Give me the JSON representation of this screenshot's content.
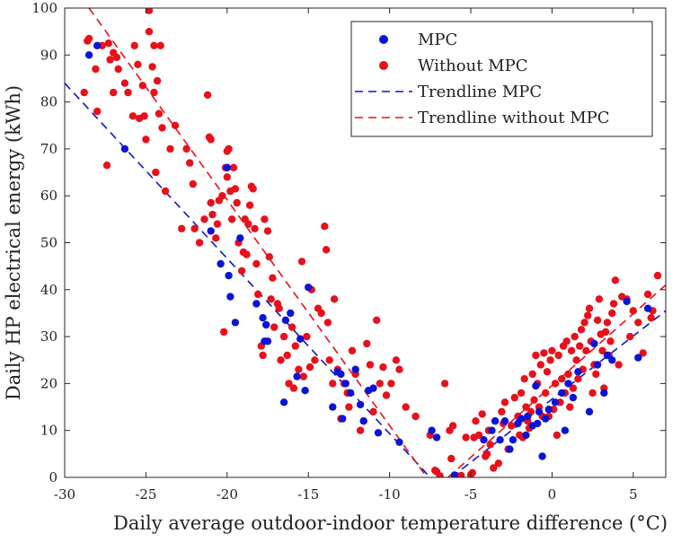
{
  "chart_data": {
    "type": "scatter",
    "title": "",
    "xlabel": "Daily average outdoor-indoor temperature difference (°C)",
    "ylabel": "Daily HP electrical energy (kWh)",
    "xlim": [
      -30,
      7
    ],
    "ylim": [
      0,
      100
    ],
    "x_ticks": [
      -30,
      -25,
      -20,
      -15,
      -10,
      -5,
      0,
      5
    ],
    "y_ticks": [
      0,
      10,
      20,
      30,
      40,
      50,
      60,
      70,
      80,
      90,
      100
    ],
    "grid": false,
    "legend_position": "top-right",
    "legend": [
      "MPC",
      "Without MPC",
      "Trendline MPC",
      "Trendline without MPC"
    ],
    "colors": {
      "mpc": "#0b14d6",
      "without_mpc": "#e8101a"
    },
    "series": [
      {
        "name": "Without MPC",
        "kind": "points",
        "color": "#e8101a",
        "points": [
          [
            -28.8,
            82
          ],
          [
            -28.6,
            93
          ],
          [
            -28.5,
            93.5
          ],
          [
            -28.1,
            87
          ],
          [
            -28,
            78
          ],
          [
            -27.7,
            92
          ],
          [
            -27.4,
            66.5
          ],
          [
            -27.3,
            92.5
          ],
          [
            -27.2,
            89
          ],
          [
            -27,
            90.5
          ],
          [
            -27,
            82
          ],
          [
            -26.8,
            89.5
          ],
          [
            -26.7,
            87
          ],
          [
            -26.3,
            84
          ],
          [
            -26.1,
            82
          ],
          [
            -25.8,
            77
          ],
          [
            -25.7,
            92
          ],
          [
            -25.5,
            88
          ],
          [
            -25.4,
            76.5
          ],
          [
            -25.2,
            83.5
          ],
          [
            -25.1,
            77
          ],
          [
            -25,
            72
          ],
          [
            -24.8,
            95
          ],
          [
            -24.8,
            99.5
          ],
          [
            -24.6,
            87.5
          ],
          [
            -24.5,
            92
          ],
          [
            -24.5,
            82
          ],
          [
            -24.4,
            65
          ],
          [
            -24.3,
            84.5
          ],
          [
            -24.2,
            77.5
          ],
          [
            -24.1,
            92
          ],
          [
            -24,
            74.5
          ],
          [
            -23.8,
            61
          ],
          [
            -23.5,
            70
          ],
          [
            -23.2,
            75
          ],
          [
            -22.8,
            53
          ],
          [
            -22.5,
            70
          ],
          [
            -22.3,
            67
          ],
          [
            -22.1,
            62.5
          ],
          [
            -22,
            53
          ],
          [
            -21.7,
            50
          ],
          [
            -21.4,
            55
          ],
          [
            -21.2,
            81.5
          ],
          [
            -21.1,
            72.5
          ],
          [
            -21,
            72
          ],
          [
            -21,
            58.5
          ],
          [
            -20.9,
            56
          ],
          [
            -20.7,
            51
          ],
          [
            -20.6,
            54
          ],
          [
            -20.5,
            59
          ],
          [
            -20.3,
            60
          ],
          [
            -20.2,
            31
          ],
          [
            -20.1,
            66
          ],
          [
            -20,
            69.5
          ],
          [
            -20,
            64
          ],
          [
            -19.9,
            70
          ],
          [
            -19.8,
            61
          ],
          [
            -19.7,
            55
          ],
          [
            -19.6,
            66
          ],
          [
            -19.5,
            61.5
          ],
          [
            -19.4,
            58.5
          ],
          [
            -19.3,
            50
          ],
          [
            -19.1,
            44
          ],
          [
            -19,
            48
          ],
          [
            -18.9,
            55
          ],
          [
            -18.8,
            47.5
          ],
          [
            -18.7,
            54
          ],
          [
            -18.6,
            58
          ],
          [
            -18.5,
            62
          ],
          [
            -18.4,
            61.5
          ],
          [
            -18.3,
            53
          ],
          [
            -18.2,
            45.5
          ],
          [
            -18.1,
            39
          ],
          [
            -17.9,
            28
          ],
          [
            -17.8,
            26
          ],
          [
            -17.7,
            55
          ],
          [
            -17.5,
            52.5
          ],
          [
            -17.4,
            47
          ],
          [
            -17.3,
            38
          ],
          [
            -17.2,
            42.5
          ],
          [
            -17.1,
            32
          ],
          [
            -16.9,
            37
          ],
          [
            -16.8,
            36
          ],
          [
            -16.7,
            25
          ],
          [
            -16.5,
            30
          ],
          [
            -16.3,
            26
          ],
          [
            -16.2,
            20
          ],
          [
            -16,
            32
          ],
          [
            -15.9,
            19
          ],
          [
            -15.8,
            28
          ],
          [
            -15.6,
            23
          ],
          [
            -15.4,
            46
          ],
          [
            -15.3,
            21.5
          ],
          [
            -15.1,
            30
          ],
          [
            -14.9,
            23.5
          ],
          [
            -14.8,
            40
          ],
          [
            -14.6,
            25
          ],
          [
            -14.4,
            36
          ],
          [
            -14.2,
            35
          ],
          [
            -14,
            53.5
          ],
          [
            -13.9,
            48.5
          ],
          [
            -13.8,
            33
          ],
          [
            -13.7,
            25
          ],
          [
            -13.5,
            20
          ],
          [
            -13.4,
            38
          ],
          [
            -13.2,
            23
          ],
          [
            -13,
            12.5
          ],
          [
            -12.8,
            20
          ],
          [
            -12.6,
            18
          ],
          [
            -12.5,
            15
          ],
          [
            -12.3,
            27
          ],
          [
            -12.1,
            22
          ],
          [
            -11.8,
            10
          ],
          [
            -11.6,
            12
          ],
          [
            -11.4,
            28.5
          ],
          [
            -11.2,
            24
          ],
          [
            -11,
            14
          ],
          [
            -10.8,
            33.5
          ],
          [
            -10.6,
            20
          ],
          [
            -10.4,
            23.5
          ],
          [
            -10.2,
            17.5
          ],
          [
            -9.9,
            20
          ],
          [
            -9.6,
            25
          ],
          [
            -9.4,
            23
          ],
          [
            -9,
            15
          ],
          [
            -8.4,
            13
          ],
          [
            -7.5,
            9
          ],
          [
            -7.2,
            1.5
          ],
          [
            -7.1,
            1.2
          ],
          [
            -6.9,
            0.3
          ],
          [
            -6.6,
            20
          ],
          [
            -6.3,
            10
          ],
          [
            -6.2,
            4
          ],
          [
            -6.1,
            11
          ],
          [
            -5.9,
            0.3
          ],
          [
            -5.6,
            0.4
          ],
          [
            -5.3,
            8.5
          ],
          [
            -5,
            0.6
          ],
          [
            -4.9,
            1
          ],
          [
            -4.8,
            8.5
          ],
          [
            -4.7,
            12
          ],
          [
            -4.5,
            9
          ],
          [
            -4.3,
            13.5
          ],
          [
            -4.1,
            4.5
          ],
          [
            -4,
            5
          ],
          [
            -3.9,
            10
          ],
          [
            -3.8,
            7
          ],
          [
            -3.6,
            2
          ],
          [
            -3.5,
            12
          ],
          [
            -3.3,
            3
          ],
          [
            -3.1,
            14
          ],
          [
            -3,
            11.5
          ],
          [
            -2.9,
            16
          ],
          [
            -2.7,
            6
          ],
          [
            -2.5,
            11
          ],
          [
            -2.3,
            17
          ],
          [
            -2.1,
            13
          ],
          [
            -2,
            9
          ],
          [
            -1.9,
            18
          ],
          [
            -1.8,
            8.5
          ],
          [
            -1.7,
            21
          ],
          [
            -1.6,
            15
          ],
          [
            -1.5,
            12
          ],
          [
            -1.4,
            10.5
          ],
          [
            -1.3,
            14
          ],
          [
            -1.2,
            22
          ],
          [
            -1.1,
            16.5
          ],
          [
            -1,
            26
          ],
          [
            -0.9,
            20
          ],
          [
            -0.8,
            15
          ],
          [
            -0.7,
            24
          ],
          [
            -0.6,
            13
          ],
          [
            -0.5,
            26.5
          ],
          [
            -0.4,
            18
          ],
          [
            -0.3,
            22.5
          ],
          [
            -0.2,
            13
          ],
          [
            -0.1,
            25
          ],
          [
            0,
            27
          ],
          [
            0.1,
            14.5
          ],
          [
            0.2,
            20
          ],
          [
            0.3,
            9
          ],
          [
            0.4,
            26
          ],
          [
            0.5,
            16
          ],
          [
            0.6,
            21
          ],
          [
            0.7,
            28
          ],
          [
            0.8,
            18
          ],
          [
            0.9,
            29
          ],
          [
            1,
            22
          ],
          [
            1.1,
            15
          ],
          [
            1.2,
            27
          ],
          [
            1.3,
            19
          ],
          [
            1.4,
            30
          ],
          [
            1.5,
            25
          ],
          [
            1.6,
            21
          ],
          [
            1.7,
            28
          ],
          [
            1.8,
            31.5
          ],
          [
            1.9,
            23
          ],
          [
            2,
            33
          ],
          [
            2.1,
            27
          ],
          [
            2.2,
            34.5
          ],
          [
            2.3,
            36
          ],
          [
            2.4,
            29
          ],
          [
            2.5,
            18
          ],
          [
            2.6,
            24
          ],
          [
            2.7,
            22
          ],
          [
            2.8,
            33.5
          ],
          [
            2.9,
            38
          ],
          [
            3,
            30.5
          ],
          [
            3.1,
            27
          ],
          [
            3.2,
            19
          ],
          [
            3.3,
            31
          ],
          [
            3.4,
            33
          ],
          [
            3.5,
            26
          ],
          [
            3.6,
            29
          ],
          [
            3.7,
            35
          ],
          [
            3.8,
            37
          ],
          [
            3.9,
            42
          ],
          [
            4.1,
            24
          ],
          [
            4.3,
            38.5
          ],
          [
            4.6,
            38
          ],
          [
            4.8,
            30
          ],
          [
            5,
            35.5
          ],
          [
            5.3,
            33
          ],
          [
            5.6,
            26.5
          ],
          [
            5.9,
            39
          ],
          [
            6.1,
            34
          ],
          [
            6.2,
            35.5
          ],
          [
            6.5,
            43
          ]
        ]
      },
      {
        "name": "MPC",
        "kind": "points",
        "color": "#0b14d6",
        "points": [
          [
            -28.5,
            90
          ],
          [
            -28,
            92
          ],
          [
            -26.3,
            70
          ],
          [
            -21,
            52.5
          ],
          [
            -20.4,
            45.5
          ],
          [
            -20,
            66
          ],
          [
            -19.9,
            43
          ],
          [
            -19.8,
            38.5
          ],
          [
            -19.5,
            33
          ],
          [
            -19.2,
            51
          ],
          [
            -18.2,
            37
          ],
          [
            -17.8,
            34
          ],
          [
            -17.7,
            29
          ],
          [
            -17.6,
            32.5
          ],
          [
            -17.5,
            29
          ],
          [
            -16.5,
            16
          ],
          [
            -16.4,
            33.5
          ],
          [
            -16.1,
            35
          ],
          [
            -15.7,
            21.5
          ],
          [
            -15.5,
            29.5
          ],
          [
            -15.2,
            18.5
          ],
          [
            -15,
            40.5
          ],
          [
            -13.5,
            15
          ],
          [
            -13.2,
            22.5
          ],
          [
            -13,
            22
          ],
          [
            -12.9,
            12.5
          ],
          [
            -12.7,
            20
          ],
          [
            -12.4,
            18
          ],
          [
            -12.1,
            23
          ],
          [
            -11.8,
            15.5
          ],
          [
            -11.6,
            12
          ],
          [
            -11.3,
            18.5
          ],
          [
            -11,
            19
          ],
          [
            -10.7,
            9.5
          ],
          [
            -9.4,
            7.5
          ],
          [
            -7.4,
            10
          ],
          [
            -7.1,
            8.5
          ],
          [
            -6,
            0.5
          ],
          [
            -4.2,
            8
          ],
          [
            -3.7,
            10
          ],
          [
            -3.5,
            12
          ],
          [
            -3.2,
            8
          ],
          [
            -2.9,
            12
          ],
          [
            -2.6,
            6
          ],
          [
            -2.4,
            8
          ],
          [
            -2.1,
            11.5
          ],
          [
            -1.9,
            12.5
          ],
          [
            -1.6,
            9
          ],
          [
            -1.5,
            13
          ],
          [
            -1.2,
            11
          ],
          [
            -1,
            19.5
          ],
          [
            -0.9,
            11.5
          ],
          [
            -0.8,
            14
          ],
          [
            -0.6,
            4.5
          ],
          [
            -0.4,
            12.5
          ],
          [
            -0.2,
            14.5
          ],
          [
            0.2,
            16
          ],
          [
            0.6,
            18
          ],
          [
            0.8,
            10
          ],
          [
            1,
            20
          ],
          [
            1.3,
            17
          ],
          [
            1.6,
            22.5
          ],
          [
            2.3,
            14
          ],
          [
            2.6,
            28.5
          ],
          [
            2.8,
            24
          ],
          [
            3.2,
            18
          ],
          [
            3.4,
            26
          ],
          [
            3.7,
            25
          ],
          [
            4.6,
            37.5
          ],
          [
            5.3,
            25.5
          ],
          [
            5.9,
            36
          ]
        ]
      },
      {
        "name": "Trendline MPC",
        "kind": "line",
        "color": "#0b14d6",
        "dashed": true,
        "segments": [
          [
            [
              -30,
              84
            ],
            [
              -7.5,
              0
            ]
          ],
          [
            [
              -6.2,
              0
            ],
            [
              7,
              35.5
            ]
          ]
        ]
      },
      {
        "name": "Trendline without MPC",
        "kind": "line",
        "color": "#e8101a",
        "dashed": true,
        "segments": [
          [
            [
              -28.5,
              100
            ],
            [
              -7.7,
              0
            ]
          ],
          [
            [
              -6.4,
              0
            ],
            [
              7,
              41
            ]
          ]
        ]
      }
    ]
  }
}
